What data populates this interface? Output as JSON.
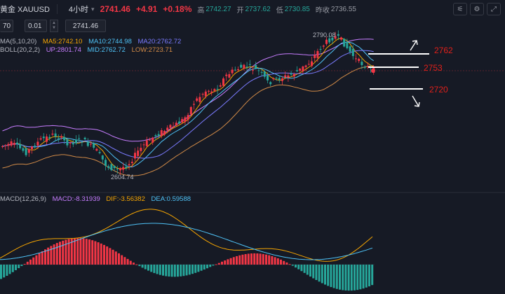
{
  "header": {
    "symbol": "黄金 XAUUSD",
    "timeframe": "4小时",
    "caret": "▾",
    "last_price": "2741.46",
    "change": "+4.91",
    "change_pct": "+0.18%",
    "high_label": "高",
    "high": "2742.27",
    "open_label": "开",
    "open": "2737.62",
    "low_label": "低",
    "low": "2730.85",
    "prev_label": "昨收",
    "prev": "2736.55"
  },
  "order": {
    "left_value": "70",
    "qty": "0.01",
    "price": "2741.46"
  },
  "indicators": {
    "ma_label": "MA(5,10,20)",
    "ma5": "MA5:2742.10",
    "ma10": "MA10:2744.98",
    "ma20": "MA20:2762.72",
    "boll_label": "BOLL(20,2,2)",
    "boll_up": "UP:2801.74",
    "boll_mid": "MID:2762.72",
    "boll_low": "LOW:2723.71",
    "macd_label": "MACD(12,26,9)",
    "macd": "MACD:-8.31939",
    "dif": "DIF:-3.56382",
    "dea": "DEA:0.59588"
  },
  "chart_annotations": {
    "high_marker": "2790.08",
    "low_marker": "2604.74",
    "level_2762": "2762",
    "level_2753": "2753",
    "level_2720": "2720"
  },
  "colors": {
    "bg": "#161a25",
    "up": "#f23645",
    "down": "#26a69a",
    "ma5": "#f7a600",
    "ma10": "#4fc3f7",
    "ma20": "#7b7bff",
    "boll": "#c77dff",
    "boll_low": "#d18a47",
    "annot": "#e0201a"
  },
  "icons": [
    "chart-tool-icon",
    "settings-icon",
    "fullscreen-icon",
    "arrow-up-right-icon",
    "arrow-down-right-icon"
  ]
}
